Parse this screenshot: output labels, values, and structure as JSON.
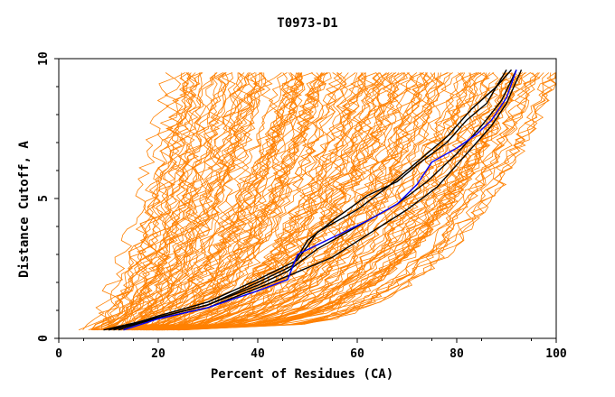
{
  "chart_data": {
    "type": "line",
    "title": "T0973-D1",
    "xlabel": "Percent of Residues (CA)",
    "ylabel": "Distance Cutoff, A",
    "xlim": [
      0,
      100
    ],
    "ylim": [
      0,
      10
    ],
    "xticks": [
      0,
      20,
      40,
      60,
      80,
      100
    ],
    "yticks": [
      0,
      5,
      10
    ],
    "grid": false,
    "legend": "none",
    "colors": {
      "background_series": "#ff8000",
      "highlight_blue": "#0000ff",
      "highlight_black": "#000000",
      "axes": "#000000"
    },
    "series": [
      {
        "color": "#0000ff",
        "points": [
          [
            13,
            0.3
          ],
          [
            20,
            0.7
          ],
          [
            30,
            1.1
          ],
          [
            40,
            1.7
          ],
          [
            46,
            2.1
          ],
          [
            48,
            3.0
          ],
          [
            55,
            3.6
          ],
          [
            62,
            4.2
          ],
          [
            68,
            4.8
          ],
          [
            72,
            5.5
          ],
          [
            75,
            6.3
          ],
          [
            80,
            6.8
          ],
          [
            84,
            7.3
          ],
          [
            87,
            7.8
          ],
          [
            90,
            8.6
          ],
          [
            92,
            9.6
          ]
        ]
      },
      {
        "color": "#000000",
        "points": [
          [
            9,
            0.3
          ],
          [
            20,
            0.75
          ],
          [
            30,
            1.2
          ],
          [
            40,
            2.0
          ],
          [
            47,
            2.6
          ],
          [
            50,
            3.5
          ],
          [
            55,
            4.2
          ],
          [
            62,
            5.1
          ],
          [
            68,
            5.6
          ],
          [
            72,
            6.2
          ],
          [
            78,
            7.0
          ],
          [
            82,
            7.8
          ],
          [
            86,
            8.4
          ],
          [
            90,
            9.6
          ]
        ]
      },
      {
        "color": "#000000",
        "points": [
          [
            11,
            0.3
          ],
          [
            20,
            0.8
          ],
          [
            30,
            1.3
          ],
          [
            40,
            2.1
          ],
          [
            48,
            2.8
          ],
          [
            52,
            3.8
          ],
          [
            60,
            4.6
          ],
          [
            66,
            5.4
          ],
          [
            72,
            6.3
          ],
          [
            78,
            7.2
          ],
          [
            83,
            8.2
          ],
          [
            88,
            9.0
          ],
          [
            91,
            9.6
          ]
        ]
      },
      {
        "color": "#000000",
        "points": [
          [
            10,
            0.3
          ],
          [
            20,
            0.7
          ],
          [
            30,
            1.1
          ],
          [
            40,
            1.8
          ],
          [
            47,
            2.3
          ],
          [
            55,
            2.9
          ],
          [
            62,
            3.7
          ],
          [
            70,
            4.6
          ],
          [
            76,
            5.4
          ],
          [
            82,
            6.6
          ],
          [
            87,
            7.6
          ],
          [
            90,
            8.4
          ],
          [
            93,
            9.6
          ]
        ]
      },
      {
        "color": "#000000",
        "points": [
          [
            12,
            0.3
          ],
          [
            20,
            0.75
          ],
          [
            30,
            1.2
          ],
          [
            40,
            1.9
          ],
          [
            46,
            2.4
          ],
          [
            52,
            3.2
          ],
          [
            60,
            4.0
          ],
          [
            68,
            4.8
          ],
          [
            74,
            5.6
          ],
          [
            80,
            6.6
          ],
          [
            85,
            7.6
          ],
          [
            89,
            8.5
          ],
          [
            92,
            9.6
          ]
        ]
      }
    ],
    "background_series_count": 160
  }
}
